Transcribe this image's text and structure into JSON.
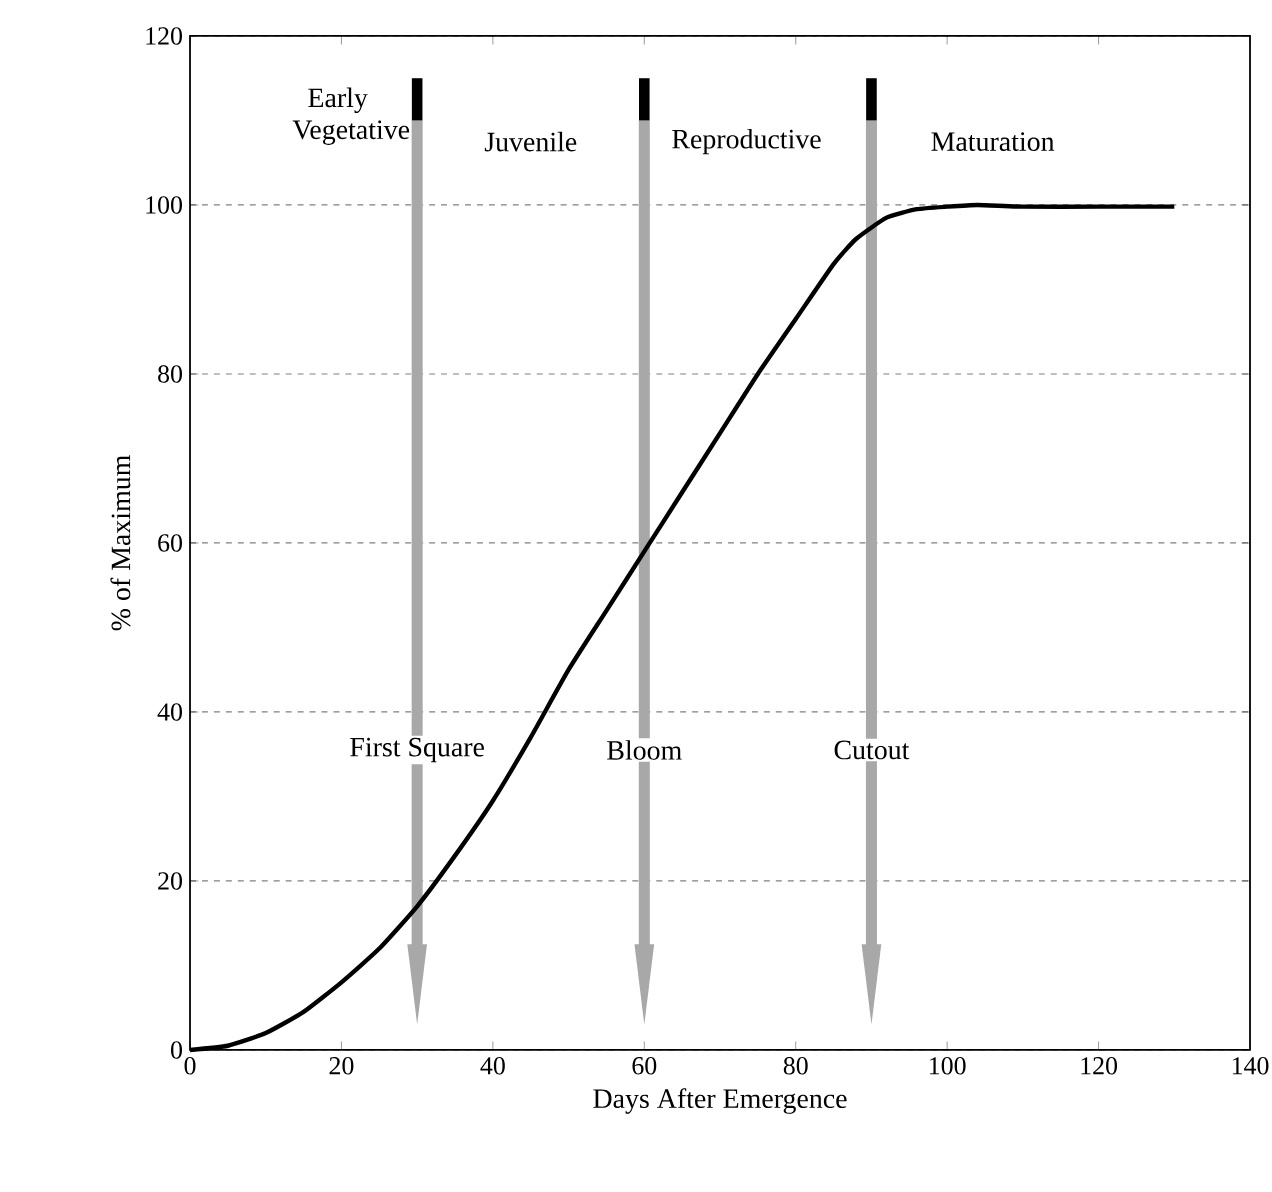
{
  "chart_data": {
    "type": "line",
    "xlabel": "Days After Emergence",
    "ylabel": "% of Maximum",
    "x": [
      0,
      5,
      10,
      15,
      20,
      25,
      30,
      35,
      40,
      45,
      50,
      55,
      60,
      65,
      70,
      75,
      80,
      85,
      88,
      92,
      96,
      100,
      104,
      110,
      120,
      130
    ],
    "series": [
      {
        "color": "#000000",
        "values": [
          0,
          0.5,
          2,
          4.5,
          8,
          12,
          17,
          23,
          29.5,
          37,
          45,
          52,
          59,
          66,
          73,
          80,
          86.5,
          93,
          96,
          98.5,
          99.5,
          99.8,
          100,
          99.8,
          99.8,
          99.8
        ]
      }
    ],
    "xlim": [
      0,
      140
    ],
    "xticks": [
      0,
      20,
      40,
      60,
      80,
      100,
      120,
      140
    ],
    "ylim": [
      0,
      120
    ],
    "yticks": [
      0,
      20,
      40,
      60,
      80,
      100,
      120
    ],
    "grid": "y",
    "marker": "none",
    "line_style": "solid",
    "ref_lines": [
      {
        "axis": "x",
        "value": 30,
        "label": "First Square",
        "color": "#a8a8a8"
      },
      {
        "axis": "x",
        "value": 60,
        "label": "Bloom",
        "color": "#a8a8a8"
      },
      {
        "axis": "x",
        "value": 90,
        "label": "Cutout",
        "color": "#a8a8a8"
      }
    ],
    "annotations": [
      "Early Vegetative",
      "Juvenile",
      "Reproductive",
      "Maturation"
    ]
  }
}
